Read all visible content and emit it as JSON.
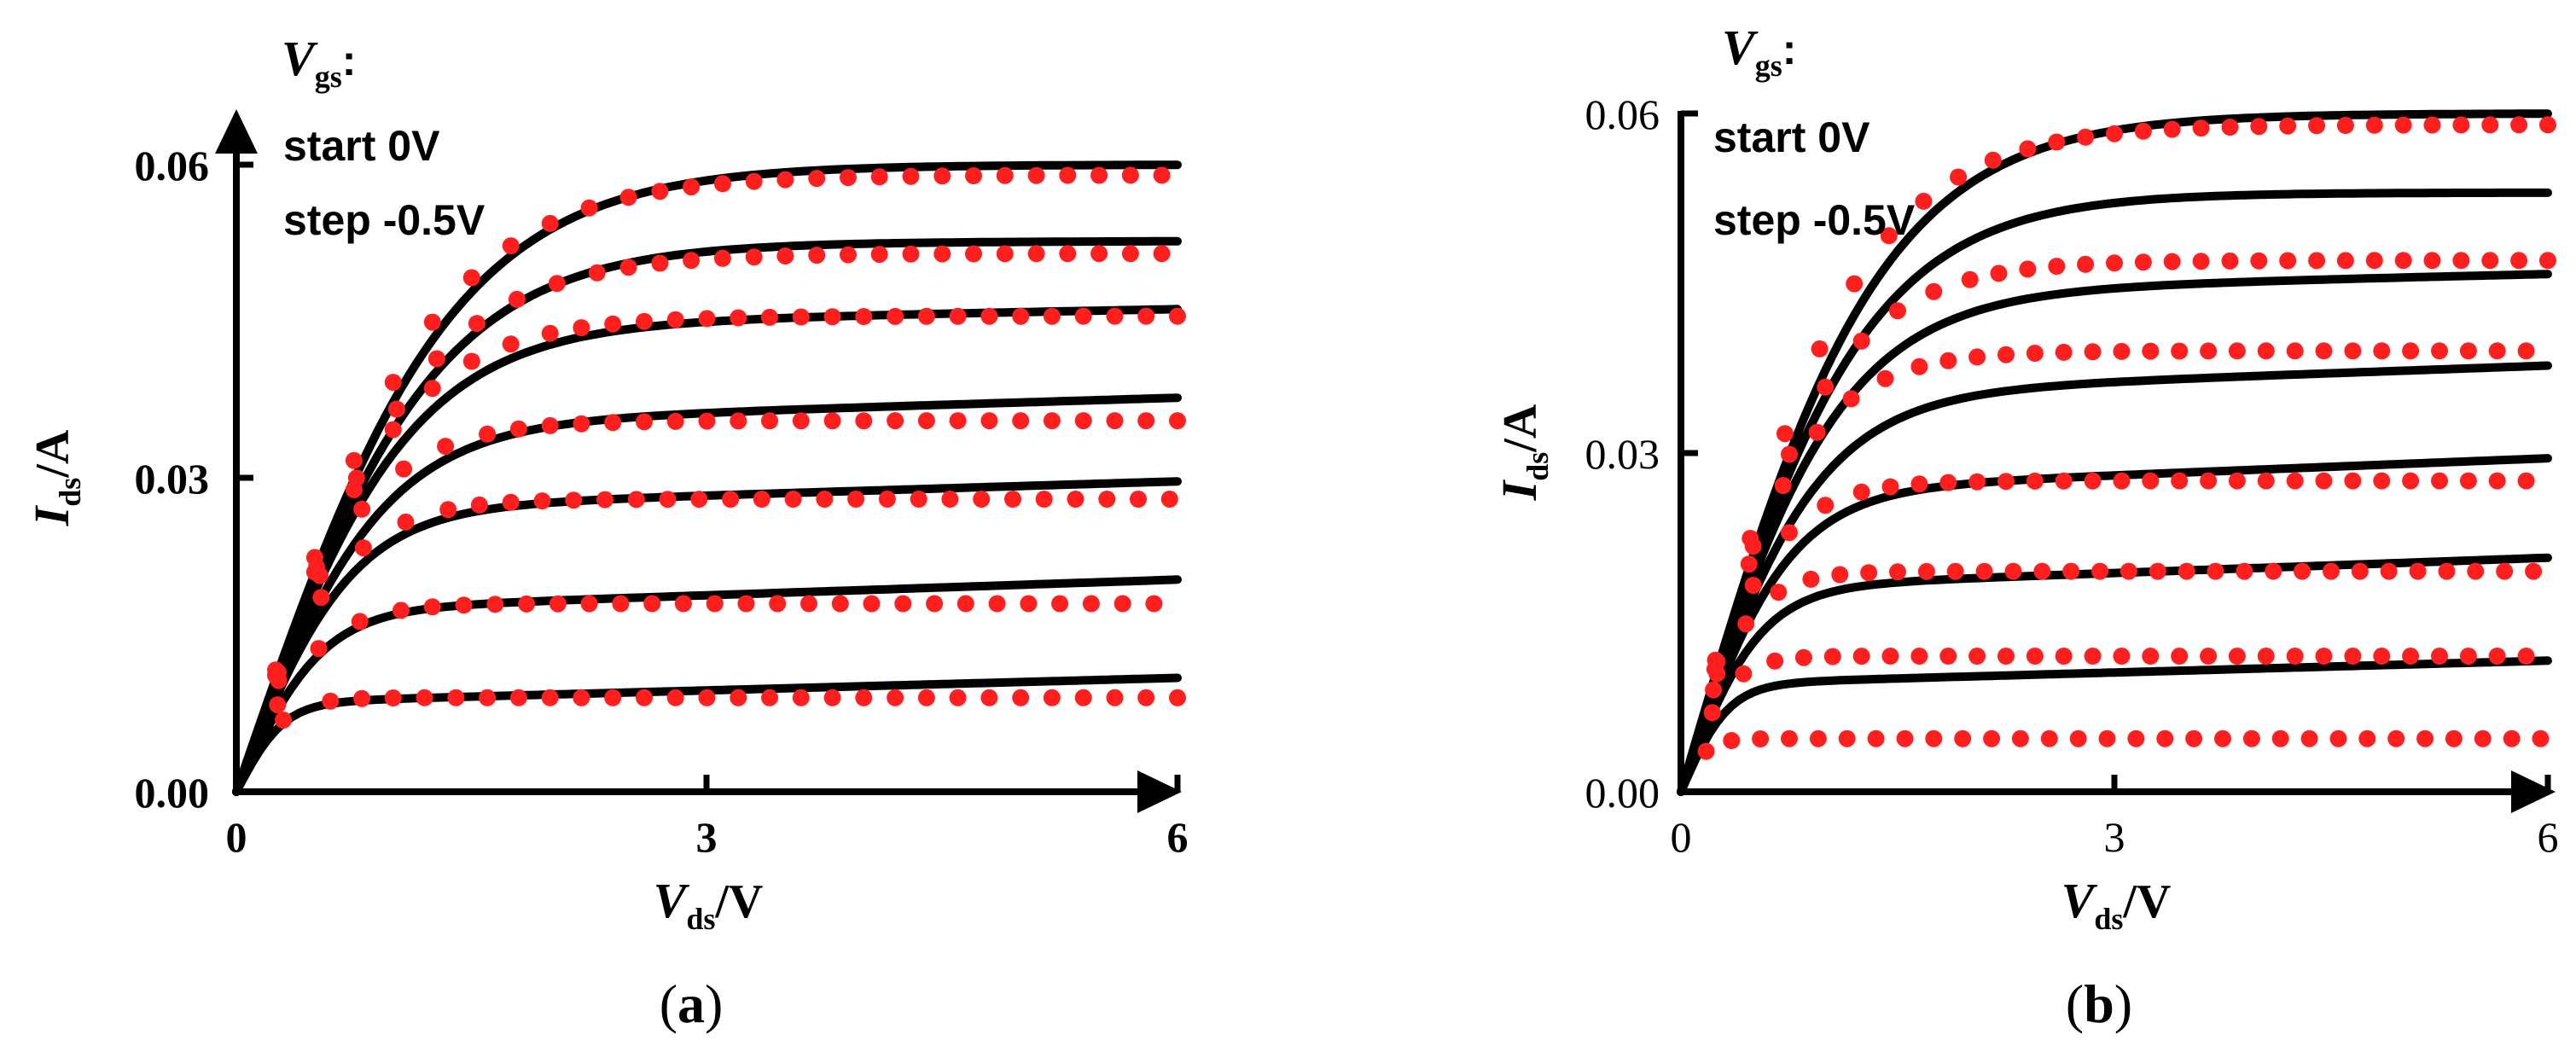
{
  "colors": {
    "measured": "#ff1f1f",
    "simulated": "#000000"
  },
  "panels": [
    {
      "label_open": "(",
      "label_letter": "a",
      "label_close": ")",
      "annotation": {
        "var": "V",
        "var_sub": "gs",
        "colon": ":",
        "line1": "start 0V",
        "line2": "step -0.5V"
      },
      "xlabel": {
        "var": "V",
        "sub": "ds",
        "unit": "/V"
      },
      "ylabel": {
        "var": "I",
        "sub": "ds",
        "unit": "/A"
      },
      "xticks": [
        "0",
        "3",
        "6"
      ],
      "yticks": [
        "0.00",
        "0.03",
        "0.06"
      ]
    },
    {
      "label_open": "(",
      "label_letter": "b",
      "label_close": ")",
      "annotation": {
        "var": "V",
        "var_sub": "gs",
        "colon": ":",
        "line1": "start 0V",
        "line2": "step -0.5V"
      },
      "xlabel": {
        "var": "V",
        "sub": "ds",
        "unit": "/V"
      },
      "ylabel": {
        "var": "I",
        "sub": "ds",
        "unit": "/A"
      },
      "xticks": [
        "0",
        "3",
        "6"
      ],
      "yticks": [
        "0.00",
        "0.03",
        "0.06"
      ]
    }
  ],
  "chart_data": [
    {
      "type": "line",
      "xlabel": "Vds/V",
      "ylabel": "Ids/A",
      "xlim": [
        0,
        6
      ],
      "ylim": [
        0,
        0.06
      ],
      "xticks": [
        0,
        3,
        6
      ],
      "yticks": [
        0.0,
        0.03,
        0.06
      ],
      "simulated_curves": [
        {
          "sat": 0.06,
          "knee": 2.5,
          "slope": 0.0
        },
        {
          "sat": 0.0525,
          "knee": 2.3,
          "slope": 3e-05
        },
        {
          "sat": 0.0445,
          "knee": 2.0,
          "slope": 0.00028
        },
        {
          "sat": 0.035,
          "knee": 1.7,
          "slope": 0.00045
        },
        {
          "sat": 0.027,
          "knee": 1.35,
          "slope": 0.00045
        },
        {
          "sat": 0.0173,
          "knee": 1.0,
          "slope": 0.0005
        },
        {
          "sat": 0.0085,
          "knee": 0.55,
          "slope": 0.0004
        }
      ],
      "measured_levels": [
        0.059,
        0.0515,
        0.0455,
        0.0355,
        0.028,
        0.018,
        0.009
      ],
      "measured_knees": [
        2.5,
        2.3,
        2.0,
        1.6,
        1.35,
        1.05,
        0.6
      ],
      "marker_x_start": 2.5,
      "marker_spacing": 0.2
    },
    {
      "type": "line",
      "xlabel": "Vds/V",
      "ylabel": "Ids/A",
      "xlim": [
        0,
        6
      ],
      "ylim": [
        0,
        0.06
      ],
      "xticks": [
        0,
        3,
        6
      ],
      "yticks": [
        0.0,
        0.03,
        0.06
      ],
      "simulated_curves": [
        {
          "sat": 0.06,
          "knee": 2.5,
          "slope": 0.0
        },
        {
          "sat": 0.053,
          "knee": 2.3,
          "slope": 0.0
        },
        {
          "sat": 0.044,
          "knee": 2.0,
          "slope": 0.0003
        },
        {
          "sat": 0.035,
          "knee": 1.7,
          "slope": 0.00045
        },
        {
          "sat": 0.0265,
          "knee": 1.35,
          "slope": 0.0005
        },
        {
          "sat": 0.018,
          "knee": 1.0,
          "slope": 0.00045
        },
        {
          "sat": 0.0095,
          "knee": 0.6,
          "slope": 0.00035
        }
      ],
      "measured_levels": [
        0.059,
        0.047,
        0.039,
        0.0275,
        0.0195,
        0.012,
        0.0047
      ],
      "measured_knees": [
        2.4,
        2.0,
        1.65,
        1.25,
        0.9,
        0.65,
        0.35
      ],
      "marker_x_start": 2.4,
      "marker_spacing": 0.2
    }
  ]
}
